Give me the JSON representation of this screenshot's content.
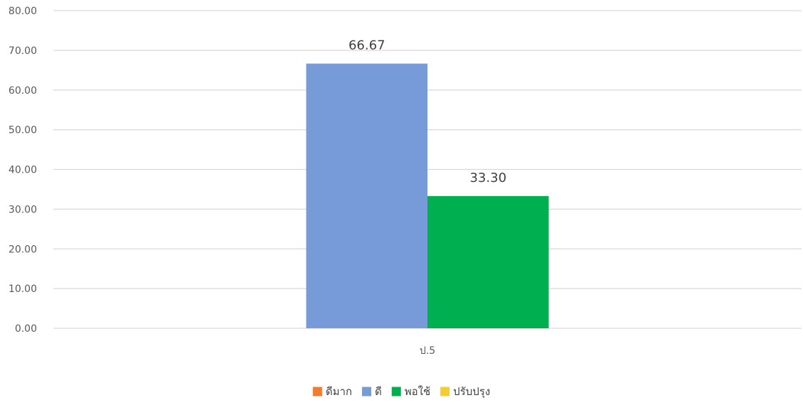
{
  "chart_data": {
    "type": "bar",
    "title": "",
    "xlabel": "",
    "ylabel": "",
    "categories": [
      "ป.5"
    ],
    "ylim": [
      0,
      80
    ],
    "yticks": [
      "0.00",
      "10.00",
      "20.00",
      "30.00",
      "40.00",
      "50.00",
      "60.00",
      "70.00",
      "80.00"
    ],
    "grid": true,
    "legend_position": "bottom",
    "series": [
      {
        "name": "ดีมาก",
        "color": "#ed7d31",
        "values": [
          0
        ],
        "labels": [
          ""
        ]
      },
      {
        "name": "ดี",
        "color": "#779bd9",
        "values": [
          66.67
        ],
        "labels": [
          "66.67"
        ]
      },
      {
        "name": "พอใช้",
        "color": "#00b050",
        "values": [
          33.3
        ],
        "labels": [
          "33.30"
        ]
      },
      {
        "name": "ปรับปรุง",
        "color": "#f5cd2f",
        "values": [
          0
        ],
        "labels": [
          ""
        ]
      }
    ]
  }
}
